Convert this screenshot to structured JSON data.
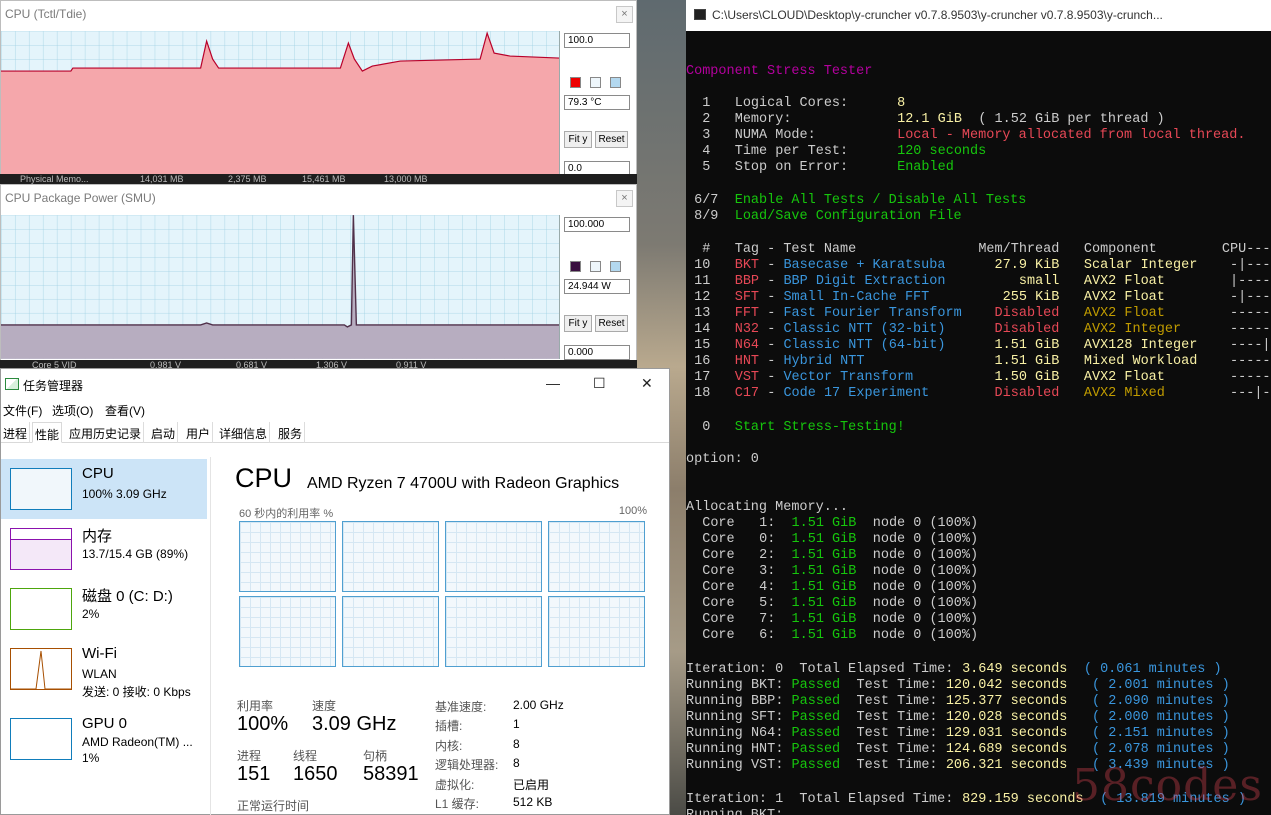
{
  "hwinfo_temp": {
    "title": "CPU (Tctl/Tdie)",
    "max_value": "100.0",
    "current_value": "79.3 °C",
    "min_value": "0.0",
    "fit_label": "Fit y",
    "reset_label": "Reset",
    "line_color": "#b8002a",
    "fill_color": "#f5a7ab",
    "close_glyph": "×"
  },
  "hwinfo_peek_1": {
    "label": "Physical Memo...",
    "v1": "14,031 MB",
    "v2": "2,375 MB",
    "v3": "15,461 MB",
    "v4": "13,000 MB"
  },
  "hwinfo_power": {
    "title": "CPU Package Power (SMU)",
    "max_value": "100.000",
    "current_value": "24.944 W",
    "min_value": "0.000",
    "fit_label": "Fit y",
    "reset_label": "Reset",
    "line_color": "#50304a",
    "fill_color": "#b7adc0",
    "close_glyph": "×"
  },
  "hwinfo_peek_2": {
    "label": "Core 5 VID",
    "v1": "0.981 V",
    "v2": "0.681 V",
    "v3": "1.306 V",
    "v4": "0.911 V"
  },
  "taskmgr": {
    "title": "任务管理器",
    "window_controls": {
      "minimize": "—",
      "maximize": "☐",
      "close": "✕"
    },
    "menu": [
      "文件(F)",
      "选项(O)",
      "查看(V)"
    ],
    "tabs": [
      "进程",
      "性能",
      "应用历史记录",
      "启动",
      "用户",
      "详细信息",
      "服务"
    ],
    "active_tab": "性能",
    "resources": [
      {
        "name": "CPU",
        "line1": "100% 3.09 GHz",
        "line2": "",
        "color": "#117dbb"
      },
      {
        "name": "内存",
        "line1": "13.7/15.4 GB (89%)",
        "line2": "",
        "color": "#8b12ae"
      },
      {
        "name": "磁盘 0 (C: D:)",
        "line1": "2%",
        "line2": "",
        "color": "#4da60c"
      },
      {
        "name": "Wi-Fi",
        "line1": "WLAN",
        "line2": "发送: 0 接收: 0 Kbps",
        "color": "#a74f01"
      },
      {
        "name": "GPU 0",
        "line1": "AMD Radeon(TM) ...",
        "line2": "1%",
        "color": "#117dbb"
      }
    ],
    "cpu": {
      "title": "CPU",
      "model": "AMD Ryzen 7 4700U with Radeon Graphics",
      "util_label": "60 秒内的利用率 %",
      "util_max": "100%",
      "stats": {
        "util_label": "利用率",
        "util_value": "100%",
        "speed_label": "速度",
        "speed_value": "3.09 GHz",
        "proc_label": "进程",
        "proc_value": "151",
        "thread_label": "线程",
        "thread_value": "1650",
        "handle_label": "句柄",
        "handle_value": "58391",
        "uptime_label": "正常运行时间"
      },
      "info": [
        {
          "k": "基准速度:",
          "v": "2.00 GHz"
        },
        {
          "k": "插槽:",
          "v": "1"
        },
        {
          "k": "内核:",
          "v": "8"
        },
        {
          "k": "逻辑处理器:",
          "v": "8"
        },
        {
          "k": "虚拟化:",
          "v": "已启用"
        },
        {
          "k": "L1 缓存:",
          "v": "512 KB"
        }
      ]
    }
  },
  "console": {
    "title": "C:\\Users\\CLOUD\\Desktop\\y-cruncher v0.7.8.9503\\y-cruncher v0.7.8.9503\\y-crunch...",
    "heading": "Component Stress Tester",
    "settings": [
      {
        "n": "1",
        "k": "Logical Cores:",
        "v": "8",
        "v2": ""
      },
      {
        "n": "2",
        "k": "Memory:",
        "v": "12.1 GiB",
        "v2": "( 1.52 GiB per thread )"
      },
      {
        "n": "3",
        "k": "NUMA Mode:",
        "v": "Local - Memory allocated from local thread.",
        "v2": ""
      },
      {
        "n": "4",
        "k": "Time per Test:",
        "v": "120 seconds",
        "v2": ""
      },
      {
        "n": "5",
        "k": "Stop on Error:",
        "v": "Enabled",
        "v2": ""
      }
    ],
    "options": [
      {
        "n": "6/7",
        "t": "Enable All Tests / Disable All Tests"
      },
      {
        "n": "8/9",
        "t": "Load/Save Configuration File"
      }
    ],
    "table_header": {
      "n": "#",
      "tag": "Tag - Test Name",
      "mem": "Mem/Thread",
      "comp": "Component",
      "cpu": "CPU---"
    },
    "tests": [
      {
        "n": "10",
        "tag": "BKT",
        "name": "Basecase + Karatsuba",
        "mem": "27.9 KiB",
        "comp": "Scalar Integer",
        "cpu": "-|---",
        "enabled": true
      },
      {
        "n": "11",
        "tag": "BBP",
        "name": "BBP Digit Extraction",
        "mem": "small",
        "comp": "AVX2 Float",
        "cpu": "|----",
        "enabled": true
      },
      {
        "n": "12",
        "tag": "SFT",
        "name": "Small In-Cache FFT",
        "mem": "255 KiB",
        "comp": "AVX2 Float",
        "cpu": "-|---",
        "enabled": true
      },
      {
        "n": "13",
        "tag": "FFT",
        "name": "Fast Fourier Transform",
        "mem": "Disabled",
        "comp": "AVX2 Float",
        "cpu": "-----",
        "enabled": false
      },
      {
        "n": "14",
        "tag": "N32",
        "name": "Classic NTT (32-bit)",
        "mem": "Disabled",
        "comp": "AVX2 Integer",
        "cpu": "-----",
        "enabled": false
      },
      {
        "n": "15",
        "tag": "N64",
        "name": "Classic NTT (64-bit)",
        "mem": "1.51 GiB",
        "comp": "AVX128 Integer",
        "cpu": "----|",
        "enabled": true
      },
      {
        "n": "16",
        "tag": "HNT",
        "name": "Hybrid NTT",
        "mem": "1.51 GiB",
        "comp": "Mixed Workload",
        "cpu": "-----",
        "enabled": true
      },
      {
        "n": "17",
        "tag": "VST",
        "name": "Vector Transform",
        "mem": "1.50 GiB",
        "comp": "AVX2 Float",
        "cpu": "-----",
        "enabled": true
      },
      {
        "n": "18",
        "tag": "C17",
        "name": "Code 17 Experiment",
        "mem": "Disabled",
        "comp": "AVX2 Mixed",
        "cpu": "---|-",
        "enabled": false
      }
    ],
    "start": {
      "n": "0",
      "t": "Start Stress-Testing!"
    },
    "option_prompt": "option: 0",
    "allocating": "Allocating Memory...",
    "cores": [
      {
        "core": "1",
        "mem": "1.51 GiB",
        "node": "node 0 (100%)"
      },
      {
        "core": "0",
        "mem": "1.51 GiB",
        "node": "node 0 (100%)"
      },
      {
        "core": "2",
        "mem": "1.51 GiB",
        "node": "node 0 (100%)"
      },
      {
        "core": "3",
        "mem": "1.51 GiB",
        "node": "node 0 (100%)"
      },
      {
        "core": "4",
        "mem": "1.51 GiB",
        "node": "node 0 (100%)"
      },
      {
        "core": "5",
        "mem": "1.51 GiB",
        "node": "node 0 (100%)"
      },
      {
        "core": "7",
        "mem": "1.51 GiB",
        "node": "node 0 (100%)"
      },
      {
        "core": "6",
        "mem": "1.51 GiB",
        "node": "node 0 (100%)"
      }
    ],
    "iteration0": {
      "label": "Iteration: 0  Total Elapsed Time:",
      "seconds": "3.649 seconds",
      "minutes": "( 0.061 minutes )"
    },
    "runs": [
      {
        "tag": "BKT",
        "seconds": "120.042 seconds",
        "minutes": "( 2.001 minutes )"
      },
      {
        "tag": "BBP",
        "seconds": "125.377 seconds",
        "minutes": "( 2.090 minutes )"
      },
      {
        "tag": "SFT",
        "seconds": "120.028 seconds",
        "minutes": "( 2.000 minutes )"
      },
      {
        "tag": "N64",
        "seconds": "129.031 seconds",
        "minutes": "( 2.151 minutes )"
      },
      {
        "tag": "HNT",
        "seconds": "124.689 seconds",
        "minutes": "( 2.078 minutes )"
      },
      {
        "tag": "VST",
        "seconds": "206.321 seconds",
        "minutes": "( 3.439 minutes )"
      }
    ],
    "passed": "Passed",
    "test_time": "Test Time:",
    "running_prefix": "Running",
    "iteration1": {
      "label": "Iteration: 1  Total Elapsed Time:",
      "seconds": "829.159 seconds",
      "minutes": "( 13.819 minutes )"
    },
    "running_partial": "Running BKT:"
  },
  "watermark": "58codes"
}
